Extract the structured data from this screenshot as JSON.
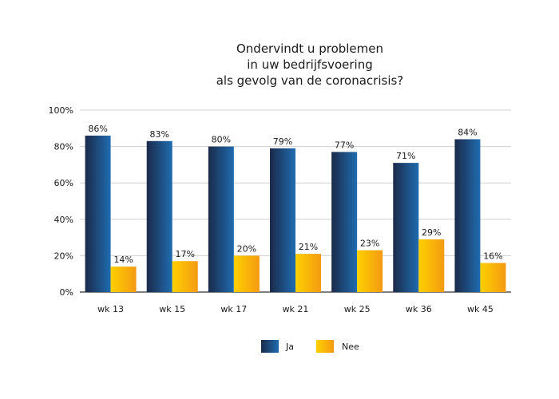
{
  "chart_data": {
    "type": "bar",
    "title_lines": [
      "Ondervindt u problemen",
      "in uw bedrijfsvoering",
      "als gevolg van de coronacrisis?"
    ],
    "categories": [
      "wk 13",
      "wk 15",
      "wk 17",
      "wk 21",
      "wk 25",
      "wk 36",
      "wk 45"
    ],
    "series": [
      {
        "name": "Ja",
        "values": [
          86,
          83,
          80,
          79,
          77,
          71,
          84
        ],
        "labels": [
          "86%",
          "83%",
          "80%",
          "79%",
          "77%",
          "71%",
          "84%"
        ]
      },
      {
        "name": "Nee",
        "values": [
          14,
          17,
          20,
          21,
          23,
          29,
          16
        ],
        "labels": [
          "14%",
          "17%",
          "20%",
          "21%",
          "23%",
          "29%",
          "16%"
        ]
      }
    ],
    "ylim": [
      0,
      100
    ],
    "yticks": [
      0,
      20,
      40,
      60,
      80,
      100
    ],
    "ytick_labels": [
      "0%",
      "20%",
      "40%",
      "60%",
      "80%",
      "100%"
    ],
    "grid": true,
    "legend_position": "bottom",
    "colors": {
      "ja_dark": "#1b2a4a",
      "ja_light": "#1f6cb0",
      "nee_light": "#ffd000",
      "nee_dark": "#f39a12",
      "grid": "#cfcfcf",
      "axis": "#333333"
    }
  }
}
